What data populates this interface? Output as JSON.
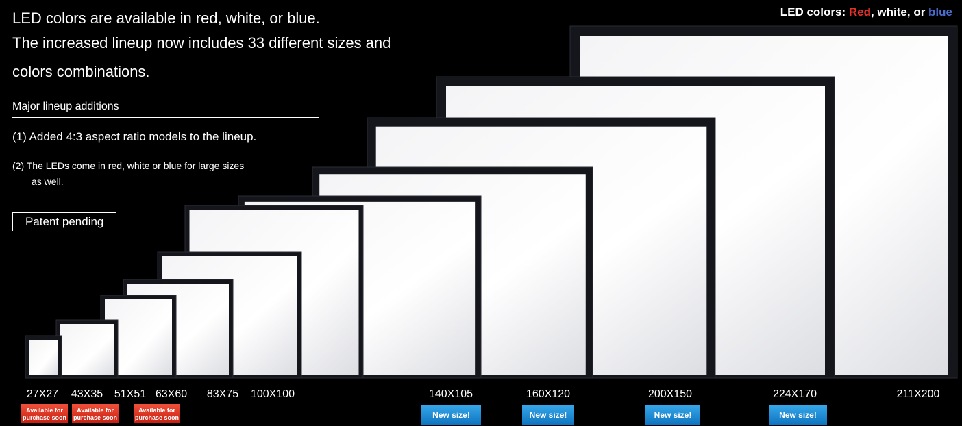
{
  "intro": {
    "lines": [
      "LED colors are available in red, white, or blue.",
      "The increased lineup now includes 33 different sizes and",
      "colors combinations."
    ]
  },
  "additions": {
    "heading": "Major lineup additions",
    "items": [
      "(1) Added 4:3 aspect ratio models to the lineup.",
      "(2) The LEDs come in red, white or blue for large sizes",
      "as well."
    ]
  },
  "patent": "Patent pending",
  "colors_note": {
    "prefix": "LED colors: ",
    "red": "Red",
    "middle": ", white, or ",
    "blue": "blue"
  },
  "sizes": [
    "27X27",
    "43X35",
    "51X51",
    "63X60",
    "83X75",
    "100X100",
    "140X105",
    "160X120",
    "200X150",
    "224X170",
    "211X200"
  ],
  "badges": {
    "soon": [
      "Available for",
      "purchase soon"
    ],
    "new": "New size!"
  }
}
